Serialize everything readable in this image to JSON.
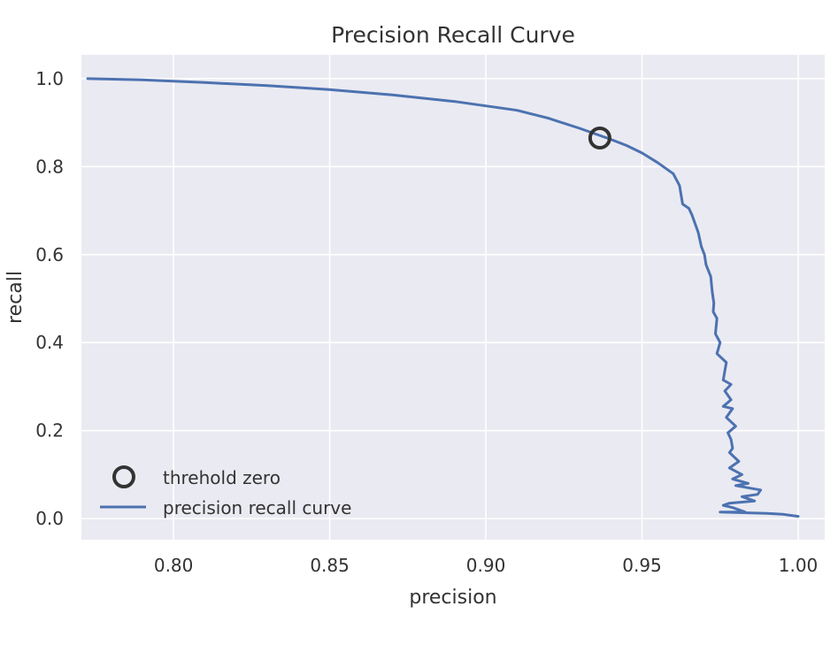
{
  "colors": {
    "background": "#eaeaf2",
    "grid": "#ffffff",
    "curve": "#4c72b0",
    "marker": "#333333",
    "text": "#333333"
  },
  "chart_data": {
    "type": "line",
    "title": "Precision Recall Curve",
    "xlabel": "precision",
    "ylabel": "recall",
    "xlim": [
      0.7705,
      1.0085
    ],
    "ylim": [
      -0.048,
      1.054
    ],
    "xticks": [
      0.8,
      0.85,
      0.9,
      0.95,
      1.0
    ],
    "xtick_labels": [
      "0.80",
      "0.85",
      "0.90",
      "0.95",
      "1.00"
    ],
    "yticks": [
      0.0,
      0.2,
      0.4,
      0.6,
      0.8,
      1.0
    ],
    "ytick_labels": [
      "0.0",
      "0.2",
      "0.4",
      "0.6",
      "0.8",
      "1.0"
    ],
    "grid": true,
    "legend_position": "lower-left",
    "series": [
      {
        "name": "precision recall curve",
        "color": "#4c72b0",
        "x": [
          0.7725,
          0.79,
          0.81,
          0.83,
          0.85,
          0.87,
          0.89,
          0.91,
          0.92,
          0.93,
          0.94,
          0.945,
          0.95,
          0.955,
          0.96,
          0.962,
          0.963,
          0.965,
          0.966,
          0.968,
          0.969,
          0.97,
          0.9705,
          0.972,
          0.9725,
          0.973,
          0.9728,
          0.974,
          0.9735,
          0.975,
          0.974,
          0.977,
          0.976,
          0.9785,
          0.9765,
          0.9785,
          0.976,
          0.979,
          0.977,
          0.98,
          0.9775,
          0.9785,
          0.979,
          0.978,
          0.981,
          0.978,
          0.982,
          0.979,
          0.984,
          0.98,
          0.988,
          0.987,
          0.982,
          0.986,
          0.978,
          0.976,
          0.979,
          0.981,
          0.983,
          0.975,
          0.99,
          0.995,
          1.0
        ],
        "y": [
          1.0,
          0.997,
          0.991,
          0.984,
          0.975,
          0.963,
          0.948,
          0.928,
          0.91,
          0.887,
          0.862,
          0.848,
          0.831,
          0.809,
          0.784,
          0.757,
          0.715,
          0.705,
          0.69,
          0.65,
          0.618,
          0.6,
          0.577,
          0.55,
          0.515,
          0.49,
          0.47,
          0.455,
          0.42,
          0.4,
          0.375,
          0.355,
          0.315,
          0.305,
          0.29,
          0.27,
          0.255,
          0.25,
          0.23,
          0.21,
          0.195,
          0.18,
          0.16,
          0.15,
          0.13,
          0.115,
          0.1,
          0.09,
          0.08,
          0.075,
          0.065,
          0.055,
          0.05,
          0.04,
          0.035,
          0.03,
          0.025,
          0.02,
          0.015,
          0.015,
          0.012,
          0.01,
          0.005
        ]
      }
    ],
    "markers": [
      {
        "name": "threhold zero",
        "x": 0.9365,
        "y": 0.865,
        "style": "hollow-circle",
        "color": "#333333"
      }
    ]
  }
}
